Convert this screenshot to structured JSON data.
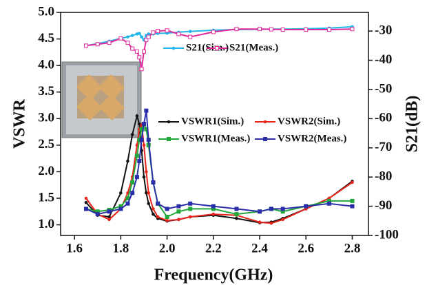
{
  "chart_data": {
    "type": "line",
    "x_label": "Frequency(GHz)",
    "y_label": "VSWR",
    "y2_label": "S21(dB)",
    "x": [
      1.65,
      1.7,
      1.75,
      1.8,
      1.83,
      1.85,
      1.87,
      1.88,
      1.89,
      1.9,
      1.91,
      1.92,
      1.94,
      1.96,
      2.0,
      2.05,
      2.1,
      2.2,
      2.3,
      2.4,
      2.45,
      2.5,
      2.6,
      2.7,
      2.8
    ],
    "xlim": [
      1.54,
      2.87
    ],
    "xticks": [
      1.6,
      1.8,
      {
        "value": 2,
        "label": "2.0"
      },
      2.2,
      2.4,
      2.6,
      2.8
    ],
    "ylim": [
      0.8,
      5.0
    ],
    "yticks": [
      {
        "value": 1,
        "label": "1.0"
      },
      1.5,
      {
        "value": 2,
        "label": "2.0"
      },
      2.5,
      {
        "value": 3,
        "label": "3.0"
      },
      3.5,
      {
        "value": 4,
        "label": "4.0"
      },
      4.5,
      {
        "value": 5,
        "label": "5.0"
      }
    ],
    "y2lim": [
      -100,
      -23.6
    ],
    "y2ticks": [
      -100,
      -90,
      -80,
      -70,
      -60,
      -50,
      -40,
      -30
    ],
    "series": [
      {
        "name": "VSWR1(Sim.)",
        "color": "#111111",
        "marker": "circle",
        "values": [
          1.42,
          1.18,
          1.15,
          1.6,
          2.2,
          2.7,
          3.05,
          2.9,
          2.4,
          1.9,
          1.6,
          1.4,
          1.2,
          1.12,
          1.07,
          1.1,
          1.15,
          1.18,
          1.12,
          1.04,
          1.05,
          1.12,
          1.3,
          1.5,
          1.82
        ]
      },
      {
        "name": "VSWR2(Sim.)",
        "color": "#e8241c",
        "marker": "circle",
        "values": [
          1.5,
          1.2,
          1.1,
          1.3,
          1.6,
          1.9,
          2.5,
          2.8,
          2.88,
          2.5,
          2.0,
          1.6,
          1.3,
          1.15,
          1.08,
          1.1,
          1.15,
          1.2,
          1.18,
          1.05,
          1.03,
          1.1,
          1.3,
          1.5,
          1.8
        ]
      },
      {
        "name": "VSWR1(Meas.)",
        "color": "#22a83a",
        "marker": "square",
        "values": [
          1.3,
          1.25,
          1.28,
          1.35,
          1.5,
          1.8,
          2.3,
          2.6,
          2.8,
          2.9,
          2.8,
          2.5,
          1.8,
          1.4,
          1.15,
          1.25,
          1.3,
          1.3,
          1.2,
          1.25,
          1.3,
          1.25,
          1.35,
          1.45,
          1.45
        ]
      },
      {
        "name": "VSWR2(Meas.)",
        "color": "#2a2fa8",
        "marker": "square",
        "values": [
          1.3,
          1.2,
          1.25,
          1.3,
          1.4,
          1.6,
          1.9,
          2.2,
          2.6,
          2.9,
          3.15,
          2.6,
          1.8,
          1.4,
          1.3,
          1.35,
          1.4,
          1.35,
          1.3,
          1.25,
          1.3,
          1.3,
          1.35,
          1.4,
          1.35
        ]
      },
      {
        "name": "S21(Sim.)",
        "color": "#1fb5e8",
        "marker": "circle",
        "axis": "y2",
        "values": [
          -35,
          -34.3,
          -33.5,
          -32.5,
          -32,
          -31.5,
          -31,
          -30.8,
          -32,
          -33,
          -31.5,
          -31,
          -31,
          -30.8,
          -30.7,
          -30.4,
          -30.1,
          -29.7,
          -29.5,
          -29.4,
          -29.3,
          -29.3,
          -29.2,
          -29,
          -28.5
        ]
      },
      {
        "name": "S21(Meas.)",
        "color": "#e0289a",
        "marker": "square-open",
        "axis": "y2",
        "values": [
          -35,
          -34.5,
          -34,
          -32.5,
          -34,
          -36,
          -37,
          -39,
          -43,
          -37,
          -33,
          -32,
          -30.5,
          -30,
          -29.8,
          -31,
          -32,
          -30.3,
          -29.3,
          -29.3,
          -29.4,
          -29.5,
          -29.5,
          -29.5,
          -29.3
        ]
      }
    ]
  }
}
